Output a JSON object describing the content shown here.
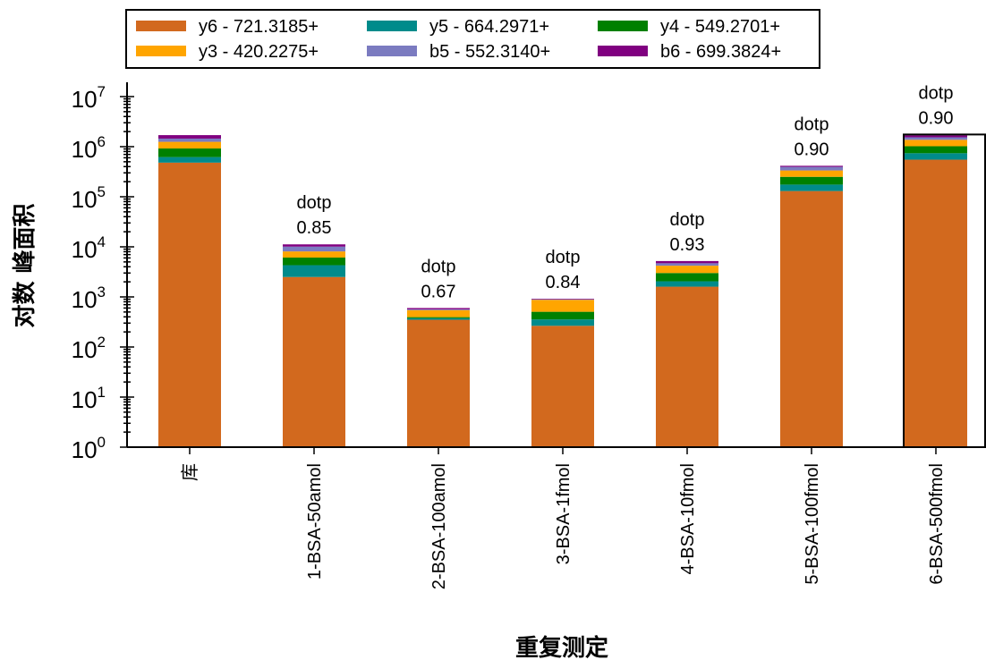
{
  "chart_data": {
    "type": "bar",
    "stacked": true,
    "y_scale": "log",
    "ylim": [
      1,
      10000000
    ],
    "y_ticks": [
      {
        "base": "10",
        "exp": "0"
      },
      {
        "base": "10",
        "exp": "1"
      },
      {
        "base": "10",
        "exp": "2"
      },
      {
        "base": "10",
        "exp": "3"
      },
      {
        "base": "10",
        "exp": "4"
      },
      {
        "base": "10",
        "exp": "5"
      },
      {
        "base": "10",
        "exp": "6"
      },
      {
        "base": "10",
        "exp": "7"
      }
    ],
    "xlabel": "重复测定",
    "ylabel": "对数 峰面积",
    "legend_position": "top",
    "categories": [
      "库",
      "1-BSA-50amol",
      "2-BSA-100amol",
      "3-BSA-1fmol",
      "4-BSA-10fmol",
      "5-BSA-100fmol",
      "6-BSA-500fmol"
    ],
    "annotations": [
      {
        "category_index": 1,
        "label": "dotp",
        "value": "0.85"
      },
      {
        "category_index": 2,
        "label": "dotp",
        "value": "0.67"
      },
      {
        "category_index": 3,
        "label": "dotp",
        "value": "0.84"
      },
      {
        "category_index": 4,
        "label": "dotp",
        "value": "0.93"
      },
      {
        "category_index": 5,
        "label": "dotp",
        "value": "0.90"
      },
      {
        "category_index": 6,
        "label": "dotp",
        "value": "0.90"
      }
    ],
    "selected_category_index": 6,
    "series": [
      {
        "name": "y6 - 721.3185+",
        "color": "#D2691E",
        "values": [
          480000,
          2500,
          350,
          265,
          1600,
          130000,
          550000
        ]
      },
      {
        "name": "y5 - 664.2971+",
        "color": "#008B8B",
        "values": [
          140000,
          1800,
          25,
          90,
          450,
          45000,
          190000
        ]
      },
      {
        "name": "y4 - 549.2701+",
        "color": "#008000",
        "values": [
          300000,
          1800,
          20,
          150,
          950,
          75000,
          280000
        ]
      },
      {
        "name": "y3 - 420.2275+",
        "color": "#FFA500",
        "values": [
          330000,
          2000,
          150,
          370,
          1200,
          85000,
          350000
        ]
      },
      {
        "name": "b5 - 552.3140+",
        "color": "#7B7BC0",
        "values": [
          200000,
          2000,
          20,
          20,
          500,
          60000,
          170000
        ]
      },
      {
        "name": "b6 - 699.3824+",
        "color": "#800080",
        "values": [
          250000,
          1100,
          35,
          25,
          500,
          20000,
          140000
        ]
      }
    ]
  }
}
